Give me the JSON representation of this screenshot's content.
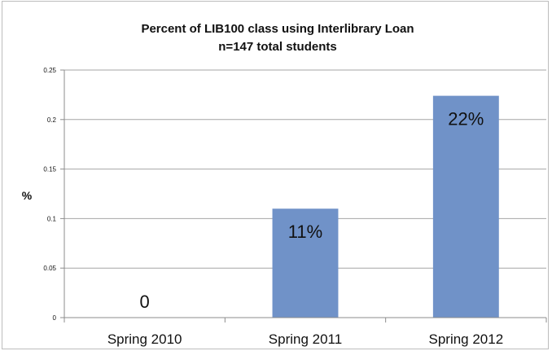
{
  "chart_data": {
    "type": "bar",
    "title": "Percent of LIB100 class using Interlibrary Loan",
    "subtitle": "n=147 total students",
    "xlabel": "",
    "ylabel": "%",
    "categories": [
      "Spring 2010",
      "Spring 2011",
      "Spring 2012"
    ],
    "values": [
      0,
      0.11,
      0.224
    ],
    "data_labels": [
      "0",
      "11%",
      "22%"
    ],
    "ylim": [
      0,
      0.25
    ],
    "yticks": [
      "0",
      "0.05",
      "0.1",
      "0.15",
      "0.2",
      "0.25"
    ],
    "yticks_values": [
      0,
      0.05,
      0.1,
      0.15,
      0.2,
      0.25
    ],
    "grid": true,
    "legend": "none",
    "colors": {
      "bar": "#7092c8",
      "grid": "#a6a6a6",
      "axis": "#8c8c8c"
    }
  }
}
